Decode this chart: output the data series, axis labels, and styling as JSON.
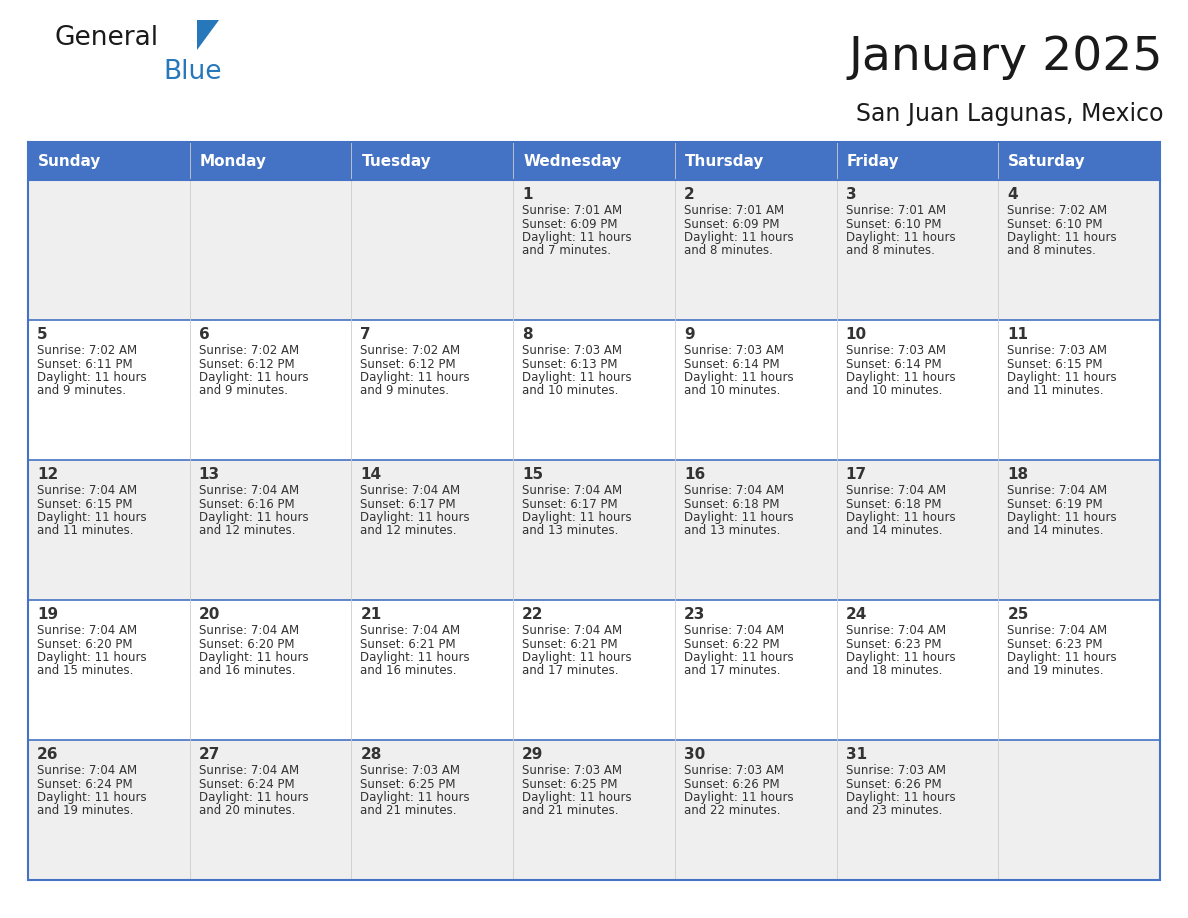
{
  "title": "January 2025",
  "subtitle": "San Juan Lagunas, Mexico",
  "days_of_week": [
    "Sunday",
    "Monday",
    "Tuesday",
    "Wednesday",
    "Thursday",
    "Friday",
    "Saturday"
  ],
  "header_bg": "#4472C4",
  "header_text_color": "#FFFFFF",
  "cell_bg_odd": "#EFEFEF",
  "cell_bg_even": "#FFFFFF",
  "border_color": "#4472C4",
  "row_line_color": "#4472C4",
  "col_line_color": "#CCCCCC",
  "text_color": "#333333",
  "day_number_color": "#333333",
  "calendar_data": [
    [
      {
        "day": "",
        "sunrise": "",
        "sunset": "",
        "daylight": ""
      },
      {
        "day": "",
        "sunrise": "",
        "sunset": "",
        "daylight": ""
      },
      {
        "day": "",
        "sunrise": "",
        "sunset": "",
        "daylight": ""
      },
      {
        "day": "1",
        "sunrise": "7:01 AM",
        "sunset": "6:09 PM",
        "daylight": "11 hours and 7 minutes."
      },
      {
        "day": "2",
        "sunrise": "7:01 AM",
        "sunset": "6:09 PM",
        "daylight": "11 hours and 8 minutes."
      },
      {
        "day": "3",
        "sunrise": "7:01 AM",
        "sunset": "6:10 PM",
        "daylight": "11 hours and 8 minutes."
      },
      {
        "day": "4",
        "sunrise": "7:02 AM",
        "sunset": "6:10 PM",
        "daylight": "11 hours and 8 minutes."
      }
    ],
    [
      {
        "day": "5",
        "sunrise": "7:02 AM",
        "sunset": "6:11 PM",
        "daylight": "11 hours and 9 minutes."
      },
      {
        "day": "6",
        "sunrise": "7:02 AM",
        "sunset": "6:12 PM",
        "daylight": "11 hours and 9 minutes."
      },
      {
        "day": "7",
        "sunrise": "7:02 AM",
        "sunset": "6:12 PM",
        "daylight": "11 hours and 9 minutes."
      },
      {
        "day": "8",
        "sunrise": "7:03 AM",
        "sunset": "6:13 PM",
        "daylight": "11 hours and 10 minutes."
      },
      {
        "day": "9",
        "sunrise": "7:03 AM",
        "sunset": "6:14 PM",
        "daylight": "11 hours and 10 minutes."
      },
      {
        "day": "10",
        "sunrise": "7:03 AM",
        "sunset": "6:14 PM",
        "daylight": "11 hours and 10 minutes."
      },
      {
        "day": "11",
        "sunrise": "7:03 AM",
        "sunset": "6:15 PM",
        "daylight": "11 hours and 11 minutes."
      }
    ],
    [
      {
        "day": "12",
        "sunrise": "7:04 AM",
        "sunset": "6:15 PM",
        "daylight": "11 hours and 11 minutes."
      },
      {
        "day": "13",
        "sunrise": "7:04 AM",
        "sunset": "6:16 PM",
        "daylight": "11 hours and 12 minutes."
      },
      {
        "day": "14",
        "sunrise": "7:04 AM",
        "sunset": "6:17 PM",
        "daylight": "11 hours and 12 minutes."
      },
      {
        "day": "15",
        "sunrise": "7:04 AM",
        "sunset": "6:17 PM",
        "daylight": "11 hours and 13 minutes."
      },
      {
        "day": "16",
        "sunrise": "7:04 AM",
        "sunset": "6:18 PM",
        "daylight": "11 hours and 13 minutes."
      },
      {
        "day": "17",
        "sunrise": "7:04 AM",
        "sunset": "6:18 PM",
        "daylight": "11 hours and 14 minutes."
      },
      {
        "day": "18",
        "sunrise": "7:04 AM",
        "sunset": "6:19 PM",
        "daylight": "11 hours and 14 minutes."
      }
    ],
    [
      {
        "day": "19",
        "sunrise": "7:04 AM",
        "sunset": "6:20 PM",
        "daylight": "11 hours and 15 minutes."
      },
      {
        "day": "20",
        "sunrise": "7:04 AM",
        "sunset": "6:20 PM",
        "daylight": "11 hours and 16 minutes."
      },
      {
        "day": "21",
        "sunrise": "7:04 AM",
        "sunset": "6:21 PM",
        "daylight": "11 hours and 16 minutes."
      },
      {
        "day": "22",
        "sunrise": "7:04 AM",
        "sunset": "6:21 PM",
        "daylight": "11 hours and 17 minutes."
      },
      {
        "day": "23",
        "sunrise": "7:04 AM",
        "sunset": "6:22 PM",
        "daylight": "11 hours and 17 minutes."
      },
      {
        "day": "24",
        "sunrise": "7:04 AM",
        "sunset": "6:23 PM",
        "daylight": "11 hours and 18 minutes."
      },
      {
        "day": "25",
        "sunrise": "7:04 AM",
        "sunset": "6:23 PM",
        "daylight": "11 hours and 19 minutes."
      }
    ],
    [
      {
        "day": "26",
        "sunrise": "7:04 AM",
        "sunset": "6:24 PM",
        "daylight": "11 hours and 19 minutes."
      },
      {
        "day": "27",
        "sunrise": "7:04 AM",
        "sunset": "6:24 PM",
        "daylight": "11 hours and 20 minutes."
      },
      {
        "day": "28",
        "sunrise": "7:03 AM",
        "sunset": "6:25 PM",
        "daylight": "11 hours and 21 minutes."
      },
      {
        "day": "29",
        "sunrise": "7:03 AM",
        "sunset": "6:25 PM",
        "daylight": "11 hours and 21 minutes."
      },
      {
        "day": "30",
        "sunrise": "7:03 AM",
        "sunset": "6:26 PM",
        "daylight": "11 hours and 22 minutes."
      },
      {
        "day": "31",
        "sunrise": "7:03 AM",
        "sunset": "6:26 PM",
        "daylight": "11 hours and 23 minutes."
      },
      {
        "day": "",
        "sunrise": "",
        "sunset": "",
        "daylight": ""
      }
    ]
  ],
  "logo_general_color": "#1a1a1a",
  "logo_blue_color": "#2777BB",
  "logo_triangle_color": "#2777BB",
  "fig_width": 11.88,
  "fig_height": 9.18,
  "dpi": 100
}
